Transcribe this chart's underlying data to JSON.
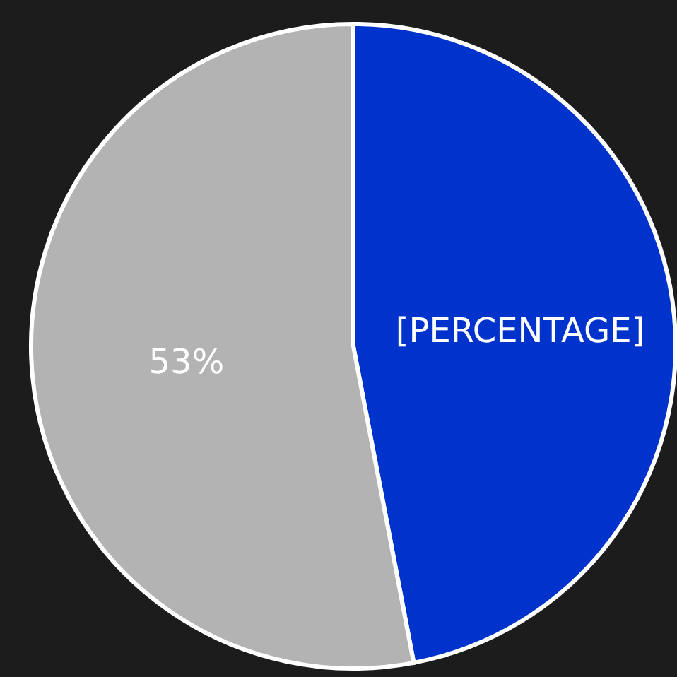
{
  "chart_data": {
    "type": "pie",
    "categories": [
      null,
      null
    ],
    "values": [
      47,
      53
    ],
    "colors": [
      "#0033cc",
      "#b3b3b3"
    ],
    "value_labels": [
      "[PERCENTAGE]",
      "53%"
    ],
    "legend": false
  }
}
